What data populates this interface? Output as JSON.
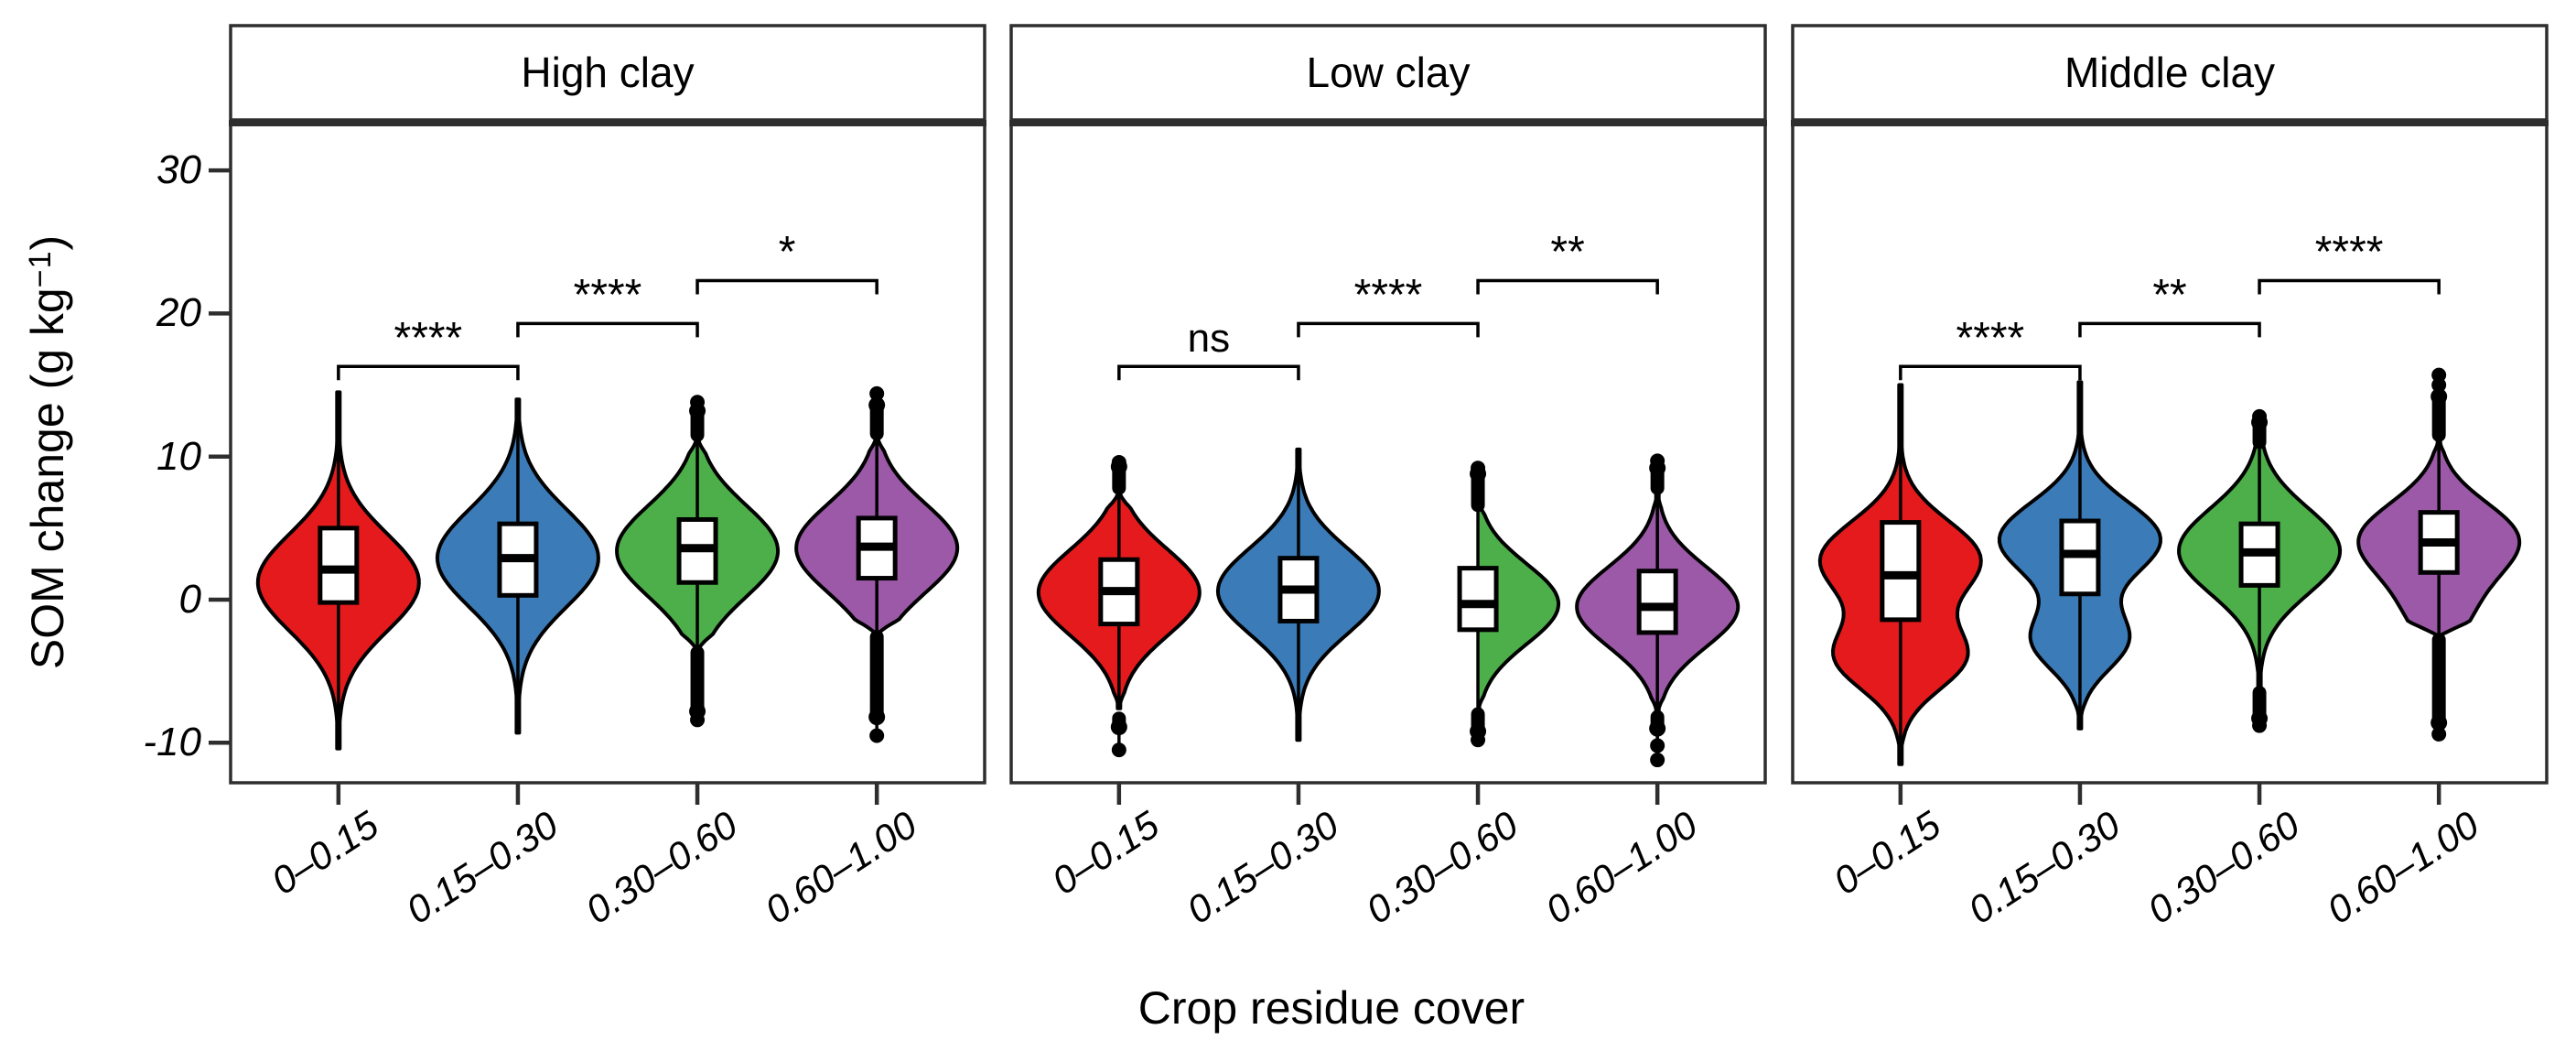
{
  "chart_data": {
    "type": "violin",
    "x_axis": {
      "title": "Crop residue cover",
      "categories": [
        "0–0.15",
        "0.15–0.30",
        "0.30–0.60",
        "0.60–1.00"
      ]
    },
    "y_axis": {
      "title": "SOM change (g kg⁻¹)",
      "title_parts": {
        "prefix": "SOM change (g kg",
        "sup": "−1",
        "suffix": ")"
      },
      "ticks": [
        {
          "label": "30",
          "value": 30
        },
        {
          "label": "20",
          "value": 20
        },
        {
          "label": "10",
          "value": 10
        },
        {
          "label": "0",
          "value": 0
        },
        {
          "label": "-10",
          "value": -10
        }
      ],
      "range": [
        -12.8,
        33.2
      ]
    },
    "colors": {
      "red": "#E41A1C",
      "blue": "#3B7CB8",
      "green": "#4DAF4A",
      "purple": "#9C59A8"
    },
    "panels": [
      {
        "title": "High clay",
        "violins": [
          {
            "category": "0–0.15",
            "color": "#E41A1C",
            "range": [
              -10.4,
              14.5
            ],
            "box": {
              "q1": -0.2,
              "median": 2.1,
              "q3": 5.0
            },
            "kde": [
              {
                "mu": 1.2,
                "sigma": 3.4,
                "w": 1
              }
            ],
            "outliers": null
          },
          {
            "category": "0.15–0.30",
            "color": "#3B7CB8",
            "range": [
              -9.3,
              14.0
            ],
            "box": {
              "q1": 0.3,
              "median": 2.9,
              "q3": 5.3
            },
            "kde": [
              {
                "mu": 2.9,
                "sigma": 3.4,
                "w": 1
              }
            ],
            "outliers": null
          },
          {
            "category": "0.30–0.60",
            "color": "#4DAF4A",
            "range": [
              -3.5,
              11.3
            ],
            "box": {
              "q1": 1.2,
              "median": 3.6,
              "q3": 5.6
            },
            "kde": [
              {
                "mu": 3.4,
                "sigma": 3.2,
                "w": 1
              }
            ],
            "outliers": {
              "top": {
                "column": [
                  11.5,
                  13.2
                ],
                "dots": [
                  13.8
                ]
              },
              "bottom": {
                "column": [
                  -3.7,
                  -7.8
                ],
                "dots": [
                  -8.4
                ]
              }
            }
          },
          {
            "category": "0.60–1.00",
            "color": "#9C59A8",
            "range": [
              -2.4,
              11.4
            ],
            "box": {
              "q1": 1.5,
              "median": 3.7,
              "q3": 5.7
            },
            "kde": [
              {
                "mu": 3.6,
                "sigma": 3.1,
                "w": 1
              }
            ],
            "outliers": {
              "top": {
                "column": [
                  11.6,
                  13.6
                ],
                "dots": [
                  14.4
                ]
              },
              "bottom": {
                "column": [
                  -2.6,
                  -8.2
                ],
                "dots": [
                  -9.5
                ]
              }
            }
          }
        ],
        "significance": [
          {
            "groups": [
              1,
              2
            ],
            "label": "****",
            "height": 16.3
          },
          {
            "groups": [
              2,
              3
            ],
            "label": "****",
            "height": 19.3
          },
          {
            "groups": [
              3,
              4
            ],
            "label": "*",
            "height": 22.3
          }
        ]
      },
      {
        "title": "Low clay",
        "violins": [
          {
            "category": "0–0.15",
            "color": "#E41A1C",
            "range": [
              -7.6,
              7.5
            ],
            "box": {
              "q1": -1.7,
              "median": 0.6,
              "q3": 2.8
            },
            "kde": [
              {
                "mu": 0.5,
                "sigma": 3.0,
                "w": 1
              }
            ],
            "outliers": {
              "top": {
                "column": [
                  7.8,
                  9.3
                ],
                "dots": [
                  9.6
                ]
              },
              "bottom": {
                "column": [
                  -8.3,
                  -8.9
                ],
                "dots": [
                  -10.5
                ]
              }
            }
          },
          {
            "category": "0.15–0.30",
            "color": "#3B7CB8",
            "range": [
              -9.8,
              10.5
            ],
            "box": {
              "q1": -1.5,
              "median": 0.7,
              "q3": 2.9
            },
            "kde": [
              {
                "mu": 0.6,
                "sigma": 3.0,
                "w": 1
              }
            ],
            "outliers": null
          },
          {
            "category": "0.30–0.60",
            "color": "#4DAF4A",
            "range": [
              -7.8,
              7.0
            ],
            "box": {
              "q1": -2.1,
              "median": -0.3,
              "q3": 2.2
            },
            "kde": [
              {
                "mu": -0.3,
                "sigma": 2.8,
                "w": 1
              }
            ],
            "outliers": {
              "top": {
                "column": [
                  6.6,
                  8.8
                ],
                "dots": [
                  9.2
                ]
              },
              "bottom": {
                "column": [
                  -8.0,
                  -9.2
                ],
                "dots": [
                  -9.8
                ]
              }
            }
          },
          {
            "category": "0.60–1.00",
            "color": "#9C59A8",
            "range": [
              -8.0,
              7.6
            ],
            "box": {
              "q1": -2.3,
              "median": -0.5,
              "q3": 2.0
            },
            "kde": [
              {
                "mu": -0.5,
                "sigma": 2.8,
                "w": 1
              }
            ],
            "outliers": {
              "top": {
                "column": [
                  7.8,
                  9.2
                ],
                "dots": [
                  9.7
                ]
              },
              "bottom": {
                "column": [
                  -8.2,
                  -9.0
                ],
                "dots": [
                  -10.2,
                  -11.2
                ]
              }
            }
          }
        ],
        "significance": [
          {
            "groups": [
              1,
              2
            ],
            "label": "ns",
            "height": 16.3
          },
          {
            "groups": [
              2,
              3
            ],
            "label": "****",
            "height": 19.3
          },
          {
            "groups": [
              3,
              4
            ],
            "label": "**",
            "height": 22.3
          }
        ]
      },
      {
        "title": "Middle clay",
        "violins": [
          {
            "category": "0–0.15",
            "color": "#E41A1C",
            "range": [
              -11.5,
              15.0
            ],
            "box": {
              "q1": -1.4,
              "median": 1.7,
              "q3": 5.4
            },
            "kde": [
              {
                "mu": 2.8,
                "sigma": 2.7,
                "w": 0.75
              },
              {
                "mu": -4.0,
                "sigma": 2.3,
                "w": 0.6
              }
            ],
            "outliers": null
          },
          {
            "category": "0.15–0.30",
            "color": "#3B7CB8",
            "range": [
              -9.0,
              15.2
            ],
            "box": {
              "q1": 0.4,
              "median": 3.2,
              "q3": 5.5
            },
            "kde": [
              {
                "mu": 4.2,
                "sigma": 2.6,
                "w": 0.85
              },
              {
                "mu": -2.8,
                "sigma": 2.1,
                "w": 0.5
              }
            ],
            "outliers": null
          },
          {
            "category": "0.30–0.60",
            "color": "#4DAF4A",
            "range": [
              -6.3,
              12.8
            ],
            "box": {
              "q1": 1.0,
              "median": 3.3,
              "q3": 5.3
            },
            "kde": [
              {
                "mu": 3.4,
                "sigma": 3.0,
                "w": 1
              }
            ],
            "outliers": {
              "top": {
                "column": [
                  11.0,
                  12.4
                ],
                "dots": [
                  12.8
                ]
              },
              "bottom": {
                "column": [
                  -6.5,
                  -8.3
                ],
                "dots": [
                  -8.8
                ]
              }
            }
          },
          {
            "category": "0.60–1.00",
            "color": "#9C59A8",
            "range": [
              -2.5,
              11.3
            ],
            "box": {
              "q1": 1.9,
              "median": 4.0,
              "q3": 6.1
            },
            "kde": [
              {
                "mu": 4.2,
                "sigma": 2.6,
                "w": 0.9
              },
              {
                "mu": -1.0,
                "sigma": 2.3,
                "w": 0.28
              }
            ],
            "outliers": {
              "top": {
                "column": [
                  11.5,
                  14.2
                ],
                "dots": [
                  15.0,
                  15.7
                ]
              },
              "bottom": {
                "column": [
                  -2.8,
                  -8.6
                ],
                "dots": [
                  -9.4
                ]
              }
            }
          }
        ],
        "significance": [
          {
            "groups": [
              1,
              2
            ],
            "label": "****",
            "height": 16.3
          },
          {
            "groups": [
              2,
              3
            ],
            "label": "**",
            "height": 19.3
          },
          {
            "groups": [
              3,
              4
            ],
            "label": "****",
            "height": 22.3
          }
        ]
      }
    ]
  }
}
